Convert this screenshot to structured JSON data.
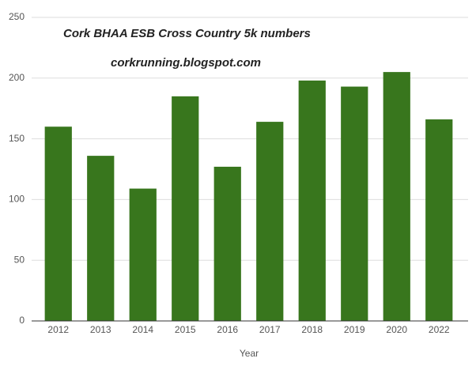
{
  "chart_data": {
    "type": "bar",
    "title": "Cork BHAA ESB Cross Country 5k numbers",
    "subtitle": "corkrunning.blogspot.com",
    "x_label": "Year",
    "categories": [
      "2012",
      "2013",
      "2014",
      "2015",
      "2016",
      "2017",
      "2018",
      "2019",
      "2020",
      "2022"
    ],
    "values": [
      160,
      136,
      109,
      185,
      127,
      164,
      198,
      193,
      205,
      166
    ],
    "color": "#38761d",
    "ylim": [
      0,
      250
    ],
    "yticks": [
      0,
      50,
      100,
      150,
      200,
      250
    ],
    "grid": true
  }
}
